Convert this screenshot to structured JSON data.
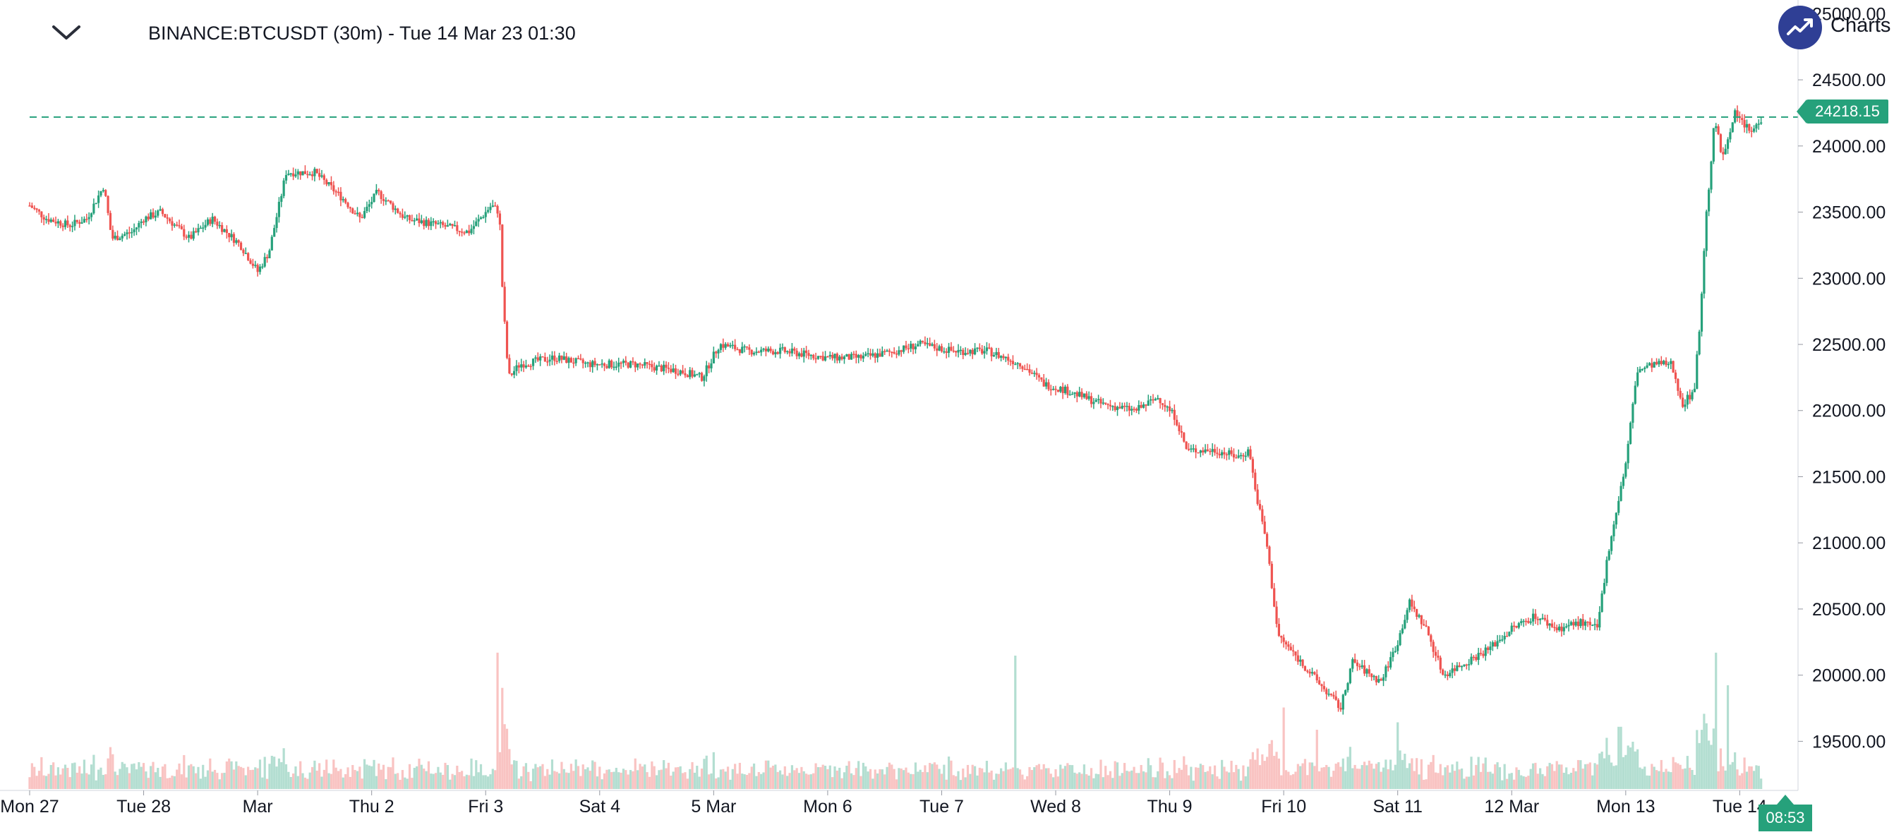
{
  "header": {
    "symbol_title": "BINANCE:BTCUSDT (30m) - Tue 14 Mar 23 01:30",
    "collapse_icon": "chevron-down-icon"
  },
  "logo": {
    "icon": "tradingview-charts-logo-icon",
    "text": "Charts p"
  },
  "last_price_label": "24218.15",
  "countdown_label": "08:53",
  "colors": {
    "up": "#26a17b",
    "down": "#ef5350",
    "price_line": "#26a17b",
    "axis_text": "#131722"
  },
  "chart_data": {
    "type": "candlestick",
    "title": "BINANCE:BTCUSDT (30m)",
    "interval": "30m",
    "y_axis": {
      "ticks": [
        "25000.00",
        "24500.00",
        "24000.00",
        "23500.00",
        "23000.00",
        "22500.00",
        "22000.00",
        "21500.00",
        "21000.00",
        "20500.00",
        "20000.00",
        "19500.00"
      ],
      "ylim": [
        19150,
        25050
      ],
      "position": "right"
    },
    "x_axis": {
      "ticks": [
        {
          "label": "Mon 27",
          "t": 0
        },
        {
          "label": "Tue 28",
          "t": 1
        },
        {
          "label": "Mar",
          "t": 2
        },
        {
          "label": "Thu 2",
          "t": 3
        },
        {
          "label": "Fri 3",
          "t": 4
        },
        {
          "label": "Sat 4",
          "t": 5
        },
        {
          "label": "5 Mar",
          "t": 6
        },
        {
          "label": "Mon 6",
          "t": 7
        },
        {
          "label": "Tue 7",
          "t": 8
        },
        {
          "label": "Wed 8",
          "t": 9
        },
        {
          "label": "Thu 9",
          "t": 10
        },
        {
          "label": "Fri 10",
          "t": 11
        },
        {
          "label": "Sat 11",
          "t": 12
        },
        {
          "label": "12 Mar",
          "t": 13
        },
        {
          "label": "Mon 13",
          "t": 14
        },
        {
          "label": "Tue 14",
          "t": 15
        }
      ],
      "xlim": [
        0,
        15.4
      ]
    },
    "last_price": 24218.15,
    "price_anchors": [
      [
        0.0,
        23550
      ],
      [
        0.15,
        23450
      ],
      [
        0.35,
        23400
      ],
      [
        0.5,
        23450
      ],
      [
        0.65,
        23700
      ],
      [
        0.72,
        23300
      ],
      [
        0.9,
        23350
      ],
      [
        1.0,
        23450
      ],
      [
        1.15,
        23500
      ],
      [
        1.4,
        23300
      ],
      [
        1.6,
        23450
      ],
      [
        1.85,
        23250
      ],
      [
        2.0,
        23050
      ],
      [
        2.1,
        23200
      ],
      [
        2.25,
        23800
      ],
      [
        2.5,
        23800
      ],
      [
        2.75,
        23600
      ],
      [
        2.9,
        23450
      ],
      [
        3.05,
        23650
      ],
      [
        3.3,
        23450
      ],
      [
        3.6,
        23400
      ],
      [
        3.85,
        23350
      ],
      [
        4.05,
        23550
      ],
      [
        4.12,
        23500
      ],
      [
        4.15,
        22850
      ],
      [
        4.2,
        22250
      ],
      [
        4.3,
        22350
      ],
      [
        4.6,
        22400
      ],
      [
        4.9,
        22350
      ],
      [
        5.3,
        22350
      ],
      [
        5.7,
        22300
      ],
      [
        5.9,
        22250
      ],
      [
        6.05,
        22500
      ],
      [
        6.3,
        22450
      ],
      [
        6.6,
        22450
      ],
      [
        7.0,
        22400
      ],
      [
        7.3,
        22400
      ],
      [
        7.6,
        22450
      ],
      [
        7.8,
        22500
      ],
      [
        8.1,
        22450
      ],
      [
        8.4,
        22450
      ],
      [
        8.7,
        22350
      ],
      [
        8.9,
        22200
      ],
      [
        9.1,
        22150
      ],
      [
        9.4,
        22050
      ],
      [
        9.7,
        22000
      ],
      [
        9.9,
        22100
      ],
      [
        10.05,
        21950
      ],
      [
        10.15,
        21700
      ],
      [
        10.4,
        21700
      ],
      [
        10.6,
        21650
      ],
      [
        10.7,
        21700
      ],
      [
        10.75,
        21400
      ],
      [
        10.85,
        21000
      ],
      [
        10.95,
        20300
      ],
      [
        11.05,
        20200
      ],
      [
        11.2,
        20050
      ],
      [
        11.35,
        19900
      ],
      [
        11.5,
        19750
      ],
      [
        11.6,
        20100
      ],
      [
        11.85,
        19950
      ],
      [
        12.0,
        20250
      ],
      [
        12.1,
        20550
      ],
      [
        12.25,
        20350
      ],
      [
        12.4,
        20000
      ],
      [
        12.6,
        20100
      ],
      [
        12.8,
        20200
      ],
      [
        13.0,
        20350
      ],
      [
        13.2,
        20450
      ],
      [
        13.4,
        20350
      ],
      [
        13.6,
        20400
      ],
      [
        13.75,
        20350
      ],
      [
        13.85,
        20950
      ],
      [
        14.0,
        21600
      ],
      [
        14.1,
        22300
      ],
      [
        14.25,
        22350
      ],
      [
        14.4,
        22350
      ],
      [
        14.5,
        22050
      ],
      [
        14.6,
        22150
      ],
      [
        14.65,
        22650
      ],
      [
        14.7,
        23400
      ],
      [
        14.78,
        24200
      ],
      [
        14.85,
        23900
      ],
      [
        14.95,
        24250
      ],
      [
        15.1,
        24100
      ],
      [
        15.2,
        24218
      ]
    ],
    "volume_spikes": [
      [
        4.1,
        0.92
      ],
      [
        8.65,
        0.9
      ],
      [
        11.0,
        0.55
      ],
      [
        11.3,
        0.4
      ],
      [
        12.0,
        0.45
      ],
      [
        13.95,
        0.42
      ],
      [
        14.8,
        0.92
      ],
      [
        14.9,
        0.7
      ]
    ]
  }
}
